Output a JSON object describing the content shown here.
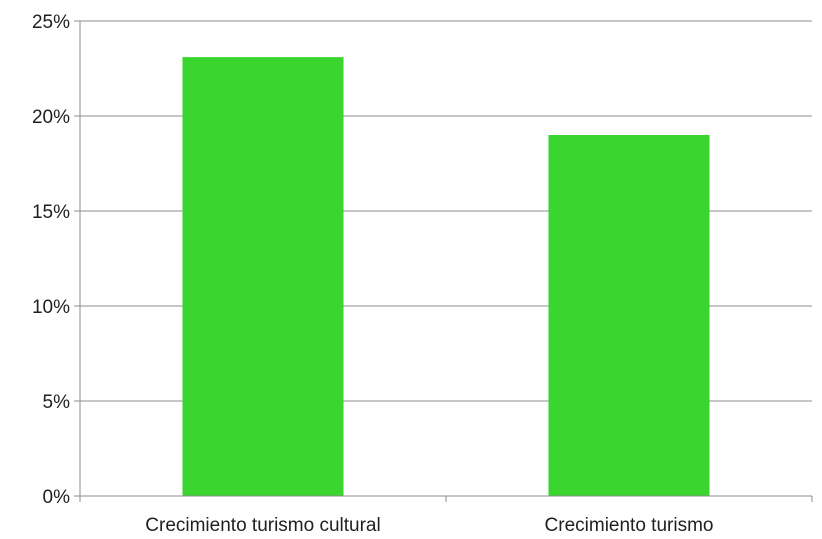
{
  "chart_data": {
    "type": "bar",
    "title": "",
    "xlabel": "",
    "ylabel": "",
    "categories": [
      "Crecimiento turismo cultural",
      "Crecimiento turismo"
    ],
    "series": [
      {
        "values": [
          0.231,
          0.19
        ],
        "color": "#3ad52e"
      }
    ],
    "ylim": [
      0,
      0.25
    ],
    "yticks": [
      0,
      0.05,
      0.1,
      0.15,
      0.2,
      0.25
    ],
    "ytick_labels": [
      "0%",
      "5%",
      "10%",
      "15%",
      "20%",
      "25%"
    ],
    "grid": true,
    "legend": "none"
  }
}
